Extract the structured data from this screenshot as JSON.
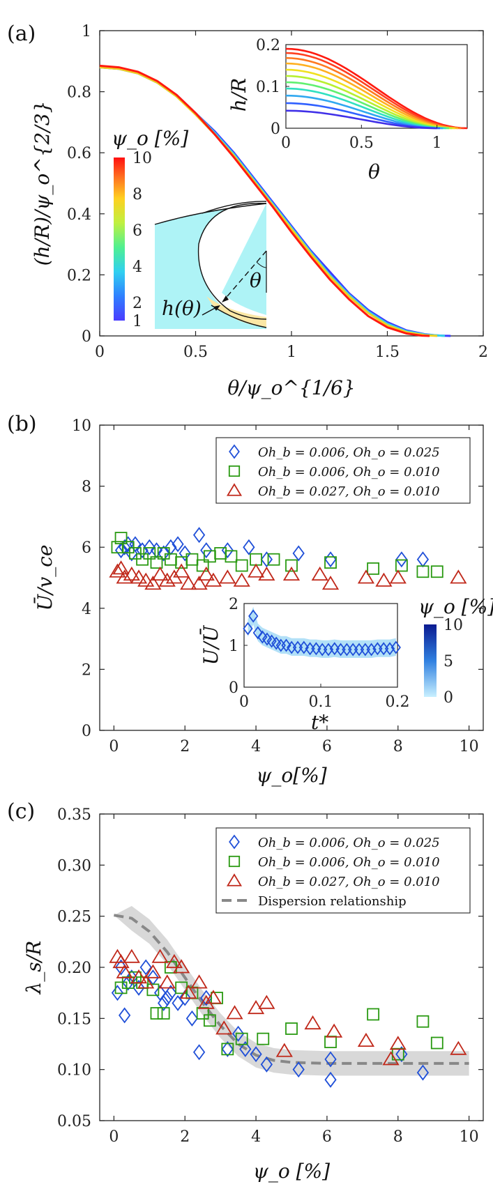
{
  "chart_data": [
    {
      "panel": "(a)",
      "type": "line",
      "xlabel": "θ/ψ_o^{1/6}",
      "ylabel": "(h/R)/ψ_o^{2/3}",
      "xlim": [
        0,
        2
      ],
      "ylim": [
        0,
        1
      ],
      "xticks": [
        "0",
        "0.5",
        "1",
        "1.5",
        "2"
      ],
      "yticks": [
        "0",
        "0.2",
        "0.4",
        "0.6",
        "0.8",
        "1"
      ],
      "colorbar": {
        "label": "ψ_o [%]",
        "ticks": [
          "1",
          "2",
          "4",
          "6",
          "8",
          "10"
        ]
      },
      "series": [
        {
          "psi": 1,
          "color": "#3b3bff",
          "x": [
            0,
            0.1,
            0.2,
            0.3,
            0.4,
            0.5,
            0.6,
            0.7,
            0.8,
            0.9,
            1.0,
            1.1,
            1.2,
            1.3,
            1.4,
            1.5,
            1.6,
            1.7,
            1.75,
            1.8,
            1.83
          ],
          "y": [
            0.88,
            0.875,
            0.86,
            0.83,
            0.79,
            0.73,
            0.67,
            0.6,
            0.52,
            0.44,
            0.36,
            0.28,
            0.21,
            0.14,
            0.085,
            0.045,
            0.018,
            0.005,
            0.002,
            0.0005,
            0
          ]
        },
        {
          "psi": 4,
          "color": "#35d2e8",
          "x": [
            0,
            0.1,
            0.2,
            0.3,
            0.4,
            0.5,
            0.6,
            0.7,
            0.8,
            0.9,
            1.0,
            1.1,
            1.2,
            1.3,
            1.4,
            1.5,
            1.6,
            1.7,
            1.78,
            1.8
          ],
          "y": [
            0.88,
            0.875,
            0.86,
            0.83,
            0.785,
            0.73,
            0.665,
            0.595,
            0.515,
            0.435,
            0.355,
            0.275,
            0.2,
            0.135,
            0.08,
            0.04,
            0.015,
            0.004,
            0.001,
            0
          ]
        },
        {
          "psi": 7,
          "color": "#f0d020",
          "x": [
            0,
            0.1,
            0.2,
            0.3,
            0.4,
            0.5,
            0.6,
            0.7,
            0.8,
            0.9,
            1.0,
            1.1,
            1.2,
            1.3,
            1.4,
            1.5,
            1.6,
            1.7,
            1.76
          ],
          "y": [
            0.88,
            0.875,
            0.86,
            0.83,
            0.785,
            0.725,
            0.66,
            0.59,
            0.51,
            0.43,
            0.35,
            0.27,
            0.195,
            0.13,
            0.075,
            0.035,
            0.012,
            0.002,
            0
          ]
        },
        {
          "psi": 10,
          "color": "#ff1a10",
          "x": [
            0,
            0.1,
            0.2,
            0.3,
            0.4,
            0.5,
            0.6,
            0.7,
            0.8,
            0.9,
            1.0,
            1.1,
            1.2,
            1.3,
            1.4,
            1.5,
            1.6,
            1.68,
            1.72
          ],
          "y": [
            0.885,
            0.88,
            0.865,
            0.835,
            0.79,
            0.73,
            0.66,
            0.585,
            0.505,
            0.425,
            0.34,
            0.26,
            0.185,
            0.12,
            0.065,
            0.028,
            0.008,
            0.001,
            0
          ]
        }
      ],
      "inset": {
        "xlabel": "θ",
        "ylabel": "h/R",
        "xticks": [
          "0",
          "0.5",
          "1"
        ],
        "yticks": [
          "0",
          "0.1",
          "0.2"
        ],
        "xlim": [
          0,
          1.2
        ],
        "ylim": [
          0,
          0.2
        ],
        "h0": [
          0.19,
          0.18,
          0.168,
          0.155,
          0.14,
          0.125,
          0.11,
          0.095,
          0.078,
          0.06,
          0.042
        ],
        "colors": [
          "#ff1a10",
          "#ff4020",
          "#ff7a20",
          "#ffb020",
          "#f0e020",
          "#b8f030",
          "#60f070",
          "#30e0c0",
          "#30a8f0",
          "#3060ff",
          "#4030e8"
        ]
      },
      "schematic": {
        "labels": [
          "h(θ)",
          "θ"
        ]
      }
    },
    {
      "panel": "(b)",
      "type": "scatter",
      "xlabel": "ψ_o[%]",
      "ylabel": "Ū/v_ce",
      "xlim": [
        -0.4,
        10.4
      ],
      "ylim": [
        0,
        10
      ],
      "xticks": [
        "0",
        "2",
        "4",
        "6",
        "8",
        "10"
      ],
      "yticks": [
        "0",
        "2",
        "4",
        "6",
        "8",
        "10"
      ],
      "legend": [
        "Oh_b = 0.006, Oh_o = 0.025",
        "Oh_b = 0.006, Oh_o = 0.010",
        "Oh_b = 0.027, Oh_o = 0.010"
      ],
      "series": [
        {
          "marker": "diamond",
          "color": "#1f4fd8",
          "points": [
            [
              0.2,
              5.9
            ],
            [
              0.3,
              6.0
            ],
            [
              0.4,
              6.1
            ],
            [
              0.5,
              5.8
            ],
            [
              0.6,
              6.1
            ],
            [
              0.8,
              5.9
            ],
            [
              1.0,
              6.0
            ],
            [
              1.2,
              5.9
            ],
            [
              1.4,
              5.8
            ],
            [
              1.6,
              6.0
            ],
            [
              1.8,
              6.1
            ],
            [
              2.0,
              5.8
            ],
            [
              2.4,
              6.4
            ],
            [
              2.6,
              5.9
            ],
            [
              3.2,
              5.9
            ],
            [
              3.8,
              6.0
            ],
            [
              4.3,
              5.6
            ],
            [
              5.2,
              5.8
            ],
            [
              6.1,
              5.6
            ],
            [
              8.1,
              5.6
            ],
            [
              8.7,
              5.6
            ]
          ]
        },
        {
          "marker": "square",
          "color": "#2a9a12",
          "points": [
            [
              0.1,
              6.0
            ],
            [
              0.2,
              6.3
            ],
            [
              0.4,
              6.0
            ],
            [
              0.6,
              5.8
            ],
            [
              0.8,
              5.6
            ],
            [
              1.0,
              5.8
            ],
            [
              1.2,
              5.5
            ],
            [
              1.4,
              5.8
            ],
            [
              1.6,
              5.6
            ],
            [
              1.9,
              5.5
            ],
            [
              2.2,
              5.6
            ],
            [
              2.5,
              5.4
            ],
            [
              2.7,
              5.7
            ],
            [
              3.0,
              5.8
            ],
            [
              3.3,
              5.7
            ],
            [
              3.6,
              5.4
            ],
            [
              4.0,
              5.6
            ],
            [
              4.5,
              5.6
            ],
            [
              5.0,
              5.4
            ],
            [
              6.1,
              5.5
            ],
            [
              7.3,
              5.3
            ],
            [
              8.1,
              5.4
            ],
            [
              8.7,
              5.2
            ],
            [
              9.1,
              5.2
            ]
          ]
        },
        {
          "marker": "triangle",
          "color": "#c0281a",
          "points": [
            [
              0.1,
              5.2
            ],
            [
              0.2,
              5.3
            ],
            [
              0.3,
              5.0
            ],
            [
              0.5,
              5.1
            ],
            [
              0.7,
              5.0
            ],
            [
              0.9,
              4.9
            ],
            [
              1.1,
              4.8
            ],
            [
              1.3,
              5.1
            ],
            [
              1.5,
              4.9
            ],
            [
              1.7,
              5.0
            ],
            [
              1.9,
              5.2
            ],
            [
              2.1,
              4.8
            ],
            [
              2.4,
              4.8
            ],
            [
              2.6,
              5.1
            ],
            [
              2.8,
              4.9
            ],
            [
              3.2,
              5.0
            ],
            [
              3.6,
              4.9
            ],
            [
              4.0,
              5.2
            ],
            [
              4.3,
              5.1
            ],
            [
              5.0,
              5.1
            ],
            [
              5.8,
              5.1
            ],
            [
              6.1,
              4.8
            ],
            [
              7.1,
              5.0
            ],
            [
              7.6,
              4.9
            ],
            [
              8.0,
              5.0
            ],
            [
              9.7,
              5.0
            ]
          ]
        }
      ],
      "inset": {
        "xlabel": "t*",
        "ylabel": "U/Ū",
        "xticks": [
          "0",
          "0.1",
          "0.2"
        ],
        "yticks": [
          "0",
          "1",
          "2"
        ],
        "xlim": [
          0,
          0.2
        ],
        "ylim": [
          0,
          2
        ],
        "colorbar": {
          "label": "ψ_o [%]",
          "ticks": [
            "0",
            "5",
            "10"
          ]
        },
        "points_x": [
          0.005,
          0.012,
          0.018,
          0.024,
          0.03,
          0.036,
          0.042,
          0.048,
          0.055,
          0.062,
          0.07,
          0.078,
          0.086,
          0.094,
          0.102,
          0.11,
          0.118,
          0.126,
          0.134,
          0.142,
          0.15,
          0.158,
          0.166,
          0.174,
          0.182,
          0.19,
          0.198
        ],
        "points_y": [
          1.4,
          1.7,
          1.3,
          1.2,
          1.15,
          1.1,
          1.05,
          1.0,
          1.0,
          0.95,
          0.95,
          0.95,
          0.92,
          0.92,
          0.9,
          0.9,
          0.92,
          0.9,
          0.9,
          0.9,
          0.9,
          0.9,
          0.9,
          0.92,
          0.92,
          0.92,
          0.95
        ]
      }
    },
    {
      "panel": "(c)",
      "type": "scatter",
      "xlabel": "ψ_o [%]",
      "ylabel": "λ_s/R",
      "xlim": [
        -0.4,
        10.4
      ],
      "ylim": [
        0.05,
        0.35
      ],
      "xticks": [
        "0",
        "2",
        "4",
        "6",
        "8",
        "10"
      ],
      "yticks": [
        "0.05",
        "0.10",
        "0.15",
        "0.20",
        "0.25",
        "0.30",
        "0.35"
      ],
      "legend": [
        "Oh_b = 0.006, Oh_o = 0.025",
        "Oh_b = 0.006, Oh_o = 0.010",
        "Oh_b = 0.027, Oh_o = 0.010",
        "Dispersion relationship"
      ],
      "series": [
        {
          "marker": "diamond",
          "color": "#1f4fd8",
          "points": [
            [
              0.1,
              0.175
            ],
            [
              0.2,
              0.2
            ],
            [
              0.3,
              0.153
            ],
            [
              0.4,
              0.185
            ],
            [
              0.5,
              0.19
            ],
            [
              0.7,
              0.18
            ],
            [
              0.9,
              0.2
            ],
            [
              1.1,
              0.19
            ],
            [
              1.3,
              0.175
            ],
            [
              1.4,
              0.165
            ],
            [
              1.5,
              0.17
            ],
            [
              1.6,
              0.175
            ],
            [
              1.8,
              0.165
            ],
            [
              2.0,
              0.17
            ],
            [
              2.2,
              0.15
            ],
            [
              2.4,
              0.117
            ],
            [
              2.6,
              0.17
            ],
            [
              3.2,
              0.12
            ],
            [
              3.5,
              0.135
            ],
            [
              3.7,
              0.12
            ],
            [
              4.0,
              0.115
            ],
            [
              4.3,
              0.105
            ],
            [
              5.2,
              0.1
            ],
            [
              6.1,
              0.11
            ],
            [
              6.1,
              0.09
            ],
            [
              8.1,
              0.115
            ],
            [
              8.7,
              0.097
            ]
          ]
        },
        {
          "marker": "square",
          "color": "#2a9a12",
          "points": [
            [
              0.2,
              0.18
            ],
            [
              0.4,
              0.185
            ],
            [
              0.6,
              0.19
            ],
            [
              0.8,
              0.185
            ],
            [
              1.1,
              0.178
            ],
            [
              1.2,
              0.155
            ],
            [
              1.4,
              0.155
            ],
            [
              1.6,
              0.2
            ],
            [
              1.9,
              0.18
            ],
            [
              2.2,
              0.175
            ],
            [
              2.5,
              0.155
            ],
            [
              2.7,
              0.148
            ],
            [
              2.9,
              0.17
            ],
            [
              3.2,
              0.12
            ],
            [
              3.6,
              0.13
            ],
            [
              4.2,
              0.13
            ],
            [
              5.0,
              0.14
            ],
            [
              6.1,
              0.127
            ],
            [
              7.3,
              0.154
            ],
            [
              8.0,
              0.115
            ],
            [
              8.7,
              0.147
            ],
            [
              9.1,
              0.126
            ]
          ]
        },
        {
          "marker": "triangle",
          "color": "#c0281a",
          "points": [
            [
              0.1,
              0.21
            ],
            [
              0.2,
              0.205
            ],
            [
              0.3,
              0.195
            ],
            [
              0.5,
              0.21
            ],
            [
              0.7,
              0.19
            ],
            [
              0.9,
              0.185
            ],
            [
              1.1,
              0.195
            ],
            [
              1.3,
              0.21
            ],
            [
              1.5,
              0.185
            ],
            [
              1.7,
              0.205
            ],
            [
              1.9,
              0.2
            ],
            [
              2.1,
              0.175
            ],
            [
              2.4,
              0.185
            ],
            [
              2.6,
              0.165
            ],
            [
              2.8,
              0.17
            ],
            [
              3.1,
              0.14
            ],
            [
              3.4,
              0.155
            ],
            [
              4.0,
              0.16
            ],
            [
              4.3,
              0.165
            ],
            [
              4.8,
              0.118
            ],
            [
              5.6,
              0.145
            ],
            [
              6.2,
              0.137
            ],
            [
              7.1,
              0.128
            ],
            [
              7.8,
              0.11
            ],
            [
              8.0,
              0.125
            ],
            [
              9.7,
              0.12
            ]
          ]
        }
      ],
      "dispersion": {
        "color": "#888888",
        "x": [
          0,
          0.5,
          1.0,
          1.5,
          2.0,
          2.5,
          3.0,
          3.5,
          4.0,
          4.5,
          5.0,
          6.0,
          7.0,
          8.0,
          9.0,
          10.0
        ],
        "y": [
          0.251,
          0.248,
          0.235,
          0.215,
          0.19,
          0.165,
          0.143,
          0.125,
          0.114,
          0.109,
          0.107,
          0.106,
          0.106,
          0.106,
          0.106,
          0.106
        ],
        "band": 0.012
      }
    }
  ]
}
